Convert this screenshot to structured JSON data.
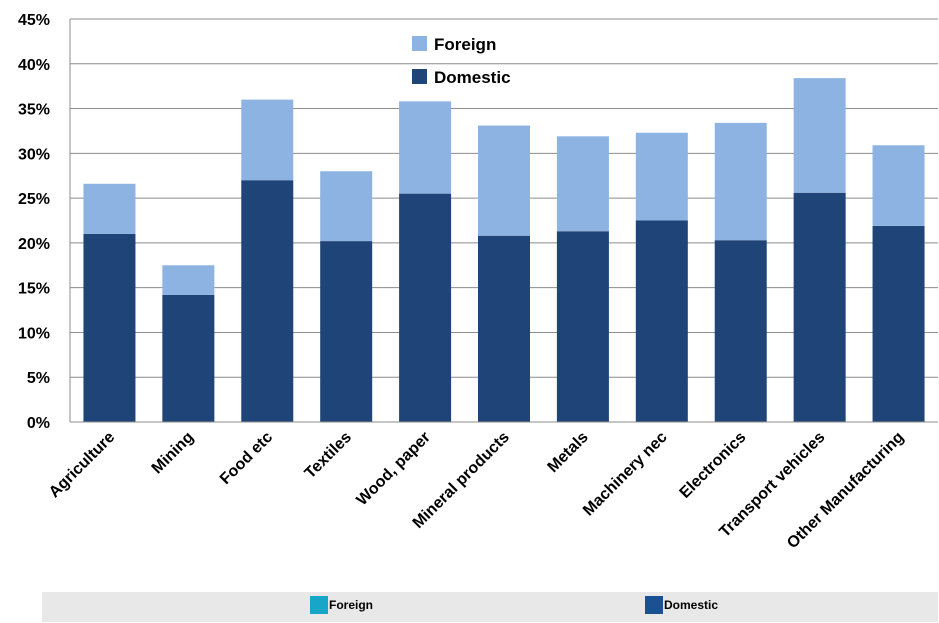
{
  "chart_data": {
    "type": "bar",
    "stacked": true,
    "categories": [
      "Agriculture",
      "Mining",
      "Food etc",
      "Textiles",
      "Wood, paper",
      "Mineral products",
      "Metals",
      "Machinery nec",
      "Electronics",
      "Transport vehicles",
      "Other Manufacturing"
    ],
    "series": [
      {
        "name": "Domestic",
        "color": "#1f4477",
        "values": [
          21.0,
          14.2,
          27.0,
          20.2,
          25.5,
          20.8,
          21.3,
          22.5,
          20.3,
          25.6,
          21.9
        ]
      },
      {
        "name": "Foreign",
        "color": "#8db3e2",
        "values": [
          5.6,
          3.3,
          9.0,
          7.8,
          10.3,
          12.3,
          10.6,
          9.8,
          13.1,
          12.8,
          9.0
        ]
      }
    ],
    "y_ticks": [
      "0%",
      "5%",
      "10%",
      "15%",
      "20%",
      "25%",
      "30%",
      "35%",
      "40%",
      "45%"
    ],
    "ylim": [
      0,
      45
    ],
    "grid": true,
    "legend": {
      "position": "top-center",
      "entries": [
        "Foreign",
        "Domestic"
      ]
    },
    "title": "",
    "xlabel": "",
    "ylabel": ""
  },
  "bottom_legend": {
    "items": [
      {
        "label": "Foreign",
        "color": "#17a5c8"
      },
      {
        "label": "Domestic",
        "color": "#1a5193"
      }
    ]
  }
}
